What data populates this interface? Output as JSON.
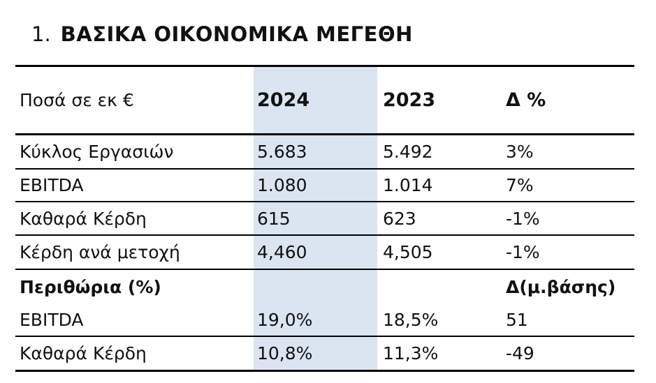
{
  "title": {
    "number": "1.",
    "text": "ΒΑΣΙΚΑ ΟΙΚΟΝΟΜΙΚΑ ΜΕΓΕΘΗ"
  },
  "table": {
    "highlight_color": "#dbe5f1",
    "columns": [
      "Ποσά σε εκ €",
      "2024",
      "2023",
      "Δ %"
    ],
    "rows": [
      {
        "label": "Κύκλος Εργασιών",
        "y2024": "5.683",
        "y2023": "5.492",
        "delta": "3%"
      },
      {
        "label": "EBITDA",
        "y2024": "1.080",
        "y2023": "1.014",
        "delta": "7%"
      },
      {
        "label": "Καθαρά Κέρδη",
        "y2024": "615",
        "y2023": "623",
        "delta": "-1%"
      },
      {
        "label": "Κέρδη ανά μετοχή",
        "y2024": "4,460",
        "y2023": "4,505",
        "delta": "-1%"
      },
      {
        "label": "Περιθώρια (%)",
        "y2024": "",
        "y2023": "",
        "delta": "Δ(μ.βάσης)"
      },
      {
        "label": "EBITDA",
        "y2024": "19,0%",
        "y2023": "18,5%",
        "delta": "51"
      },
      {
        "label": "Καθαρά Κέρδη",
        "y2024": "10,8%",
        "y2023": "11,3%",
        "delta": "-49"
      }
    ]
  }
}
